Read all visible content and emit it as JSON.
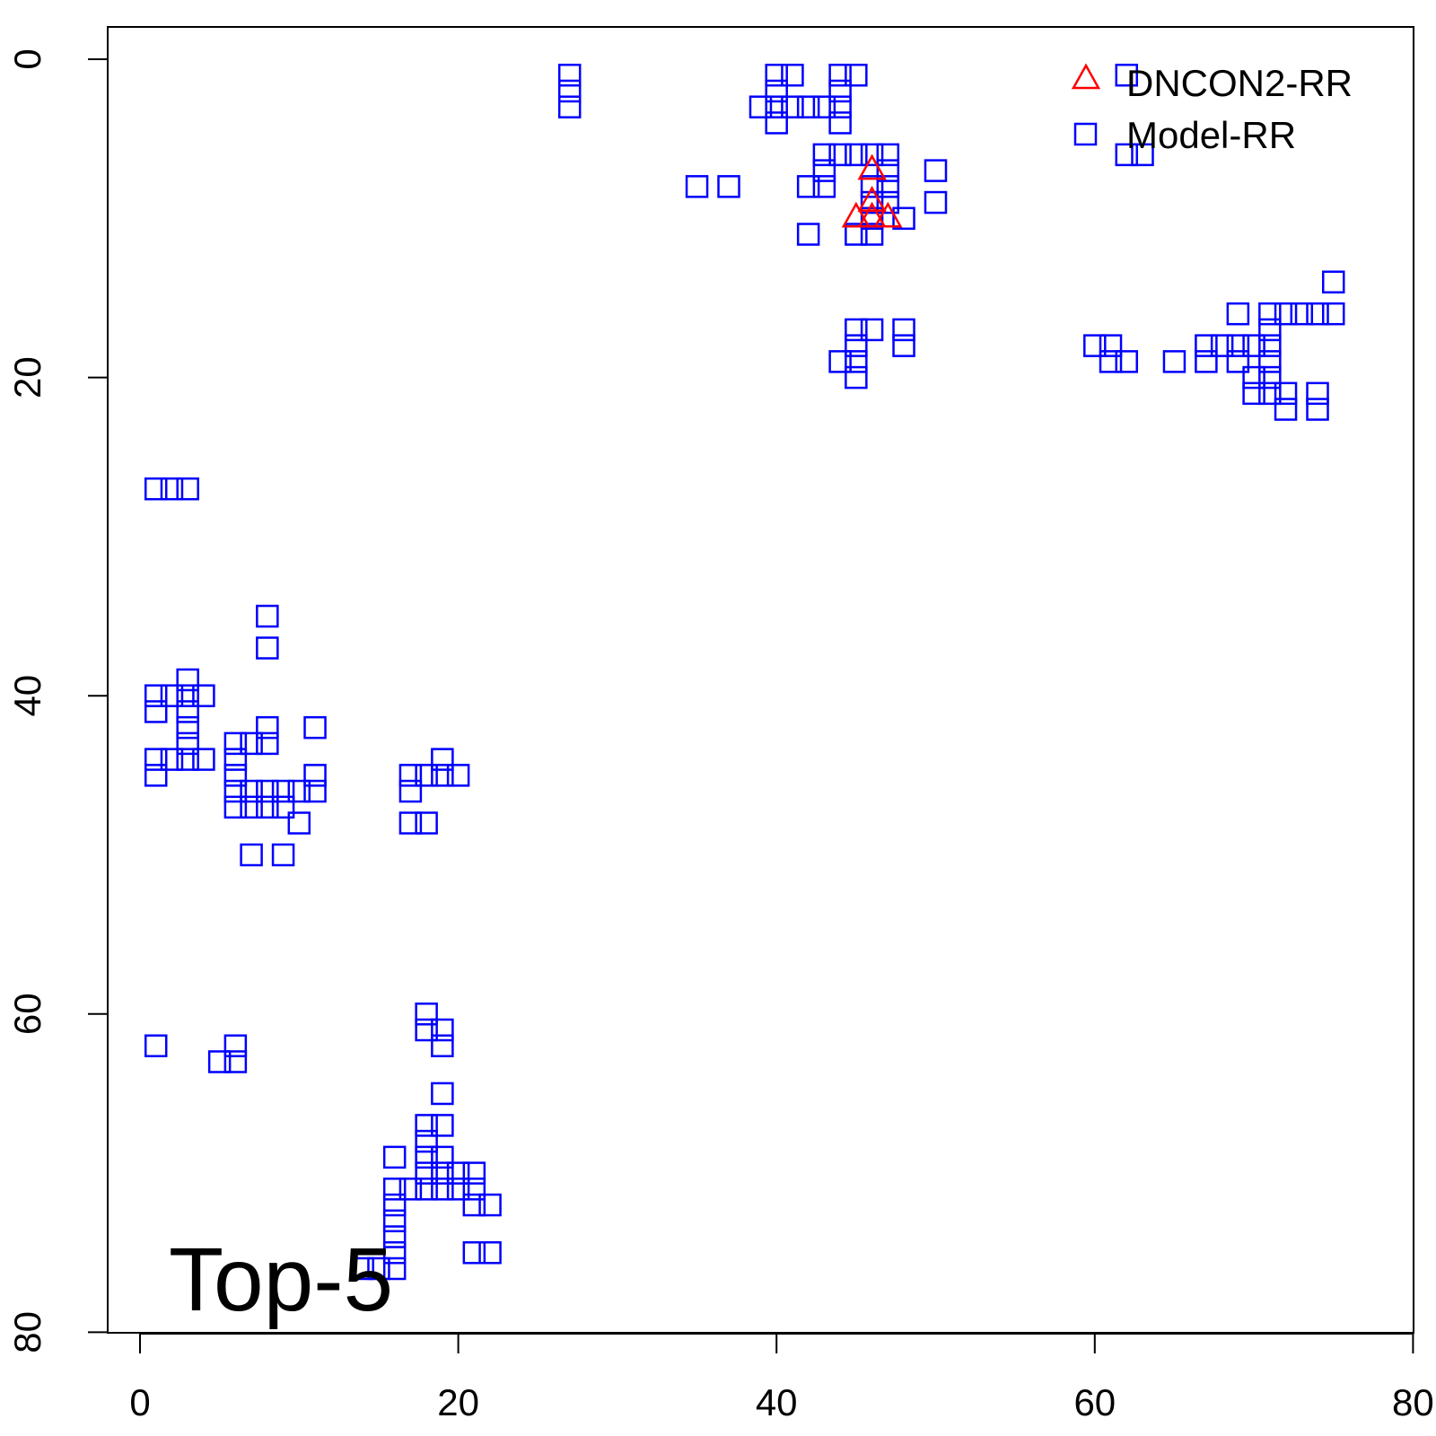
{
  "chart_data": {
    "type": "scatter",
    "title": "",
    "xlabel": "",
    "ylabel": "",
    "xlim": [
      -2,
      80
    ],
    "ylim": [
      80,
      -2
    ],
    "y_reversed": true,
    "x_ticks": [
      "0",
      "20",
      "40",
      "60",
      "80"
    ],
    "y_ticks": [
      "0",
      "20",
      "40",
      "60",
      "80"
    ],
    "annotation": "Top-5",
    "legend": {
      "position": "top-right",
      "items": [
        {
          "label": "DNCON2-RR",
          "marker": "triangle",
          "color": "#ff0000"
        },
        {
          "label": "Model-RR",
          "marker": "square",
          "color": "#0000ff"
        }
      ]
    },
    "series": [
      {
        "name": "DNCON2-RR",
        "marker": "triangle",
        "color": "#ff0000",
        "points": [
          [
            46,
            7
          ],
          [
            46,
            9
          ],
          [
            45,
            10
          ],
          [
            46,
            10
          ],
          [
            47,
            10
          ]
        ]
      },
      {
        "name": "Model-RR",
        "marker": "square",
        "color": "#0000ff",
        "points": [
          [
            27,
            1
          ],
          [
            27,
            2
          ],
          [
            27,
            3
          ],
          [
            40,
            1
          ],
          [
            41,
            1
          ],
          [
            44,
            1
          ],
          [
            45,
            1
          ],
          [
            40,
            2
          ],
          [
            44,
            2
          ],
          [
            39,
            3
          ],
          [
            40,
            3
          ],
          [
            41,
            3
          ],
          [
            42,
            3
          ],
          [
            43,
            3
          ],
          [
            44,
            3
          ],
          [
            40,
            4
          ],
          [
            44,
            4
          ],
          [
            43,
            6
          ],
          [
            44,
            6
          ],
          [
            45,
            6
          ],
          [
            46,
            6
          ],
          [
            47,
            6
          ],
          [
            43,
            7
          ],
          [
            47,
            7
          ],
          [
            50,
            7
          ],
          [
            35,
            8
          ],
          [
            37,
            8
          ],
          [
            42,
            8
          ],
          [
            43,
            8
          ],
          [
            46,
            8
          ],
          [
            47,
            8
          ],
          [
            46,
            9
          ],
          [
            47,
            9
          ],
          [
            50,
            9
          ],
          [
            46,
            10
          ],
          [
            48,
            10
          ],
          [
            42,
            11
          ],
          [
            45,
            11
          ],
          [
            46,
            11
          ],
          [
            45,
            17
          ],
          [
            46,
            17
          ],
          [
            48,
            17
          ],
          [
            45,
            18
          ],
          [
            48,
            18
          ],
          [
            44,
            19
          ],
          [
            45,
            19
          ],
          [
            45,
            20
          ],
          [
            62,
            1
          ],
          [
            62,
            6
          ],
          [
            63,
            6
          ],
          [
            75,
            14
          ],
          [
            69,
            16
          ],
          [
            71,
            16
          ],
          [
            72,
            16
          ],
          [
            73,
            16
          ],
          [
            74,
            16
          ],
          [
            75,
            16
          ],
          [
            71,
            17
          ],
          [
            60,
            18
          ],
          [
            61,
            18
          ],
          [
            67,
            18
          ],
          [
            68,
            18
          ],
          [
            69,
            18
          ],
          [
            70,
            18
          ],
          [
            71,
            18
          ],
          [
            61,
            19
          ],
          [
            62,
            19
          ],
          [
            65,
            19
          ],
          [
            67,
            19
          ],
          [
            69,
            19
          ],
          [
            71,
            19
          ],
          [
            70,
            20
          ],
          [
            71,
            20
          ],
          [
            70,
            21
          ],
          [
            71,
            21
          ],
          [
            72,
            21
          ],
          [
            74,
            21
          ],
          [
            72,
            22
          ],
          [
            74,
            22
          ],
          [
            1,
            27
          ],
          [
            2,
            27
          ],
          [
            3,
            27
          ],
          [
            8,
            35
          ],
          [
            8,
            37
          ],
          [
            3,
            39
          ],
          [
            1,
            40
          ],
          [
            2,
            40
          ],
          [
            3,
            40
          ],
          [
            4,
            40
          ],
          [
            1,
            41
          ],
          [
            3,
            41
          ],
          [
            3,
            42
          ],
          [
            8,
            42
          ],
          [
            11,
            42
          ],
          [
            3,
            43
          ],
          [
            6,
            43
          ],
          [
            7,
            43
          ],
          [
            8,
            43
          ],
          [
            1,
            44
          ],
          [
            2,
            44
          ],
          [
            3,
            44
          ],
          [
            4,
            44
          ],
          [
            6,
            44
          ],
          [
            1,
            45
          ],
          [
            6,
            45
          ],
          [
            11,
            45
          ],
          [
            6,
            46
          ],
          [
            7,
            46
          ],
          [
            8,
            46
          ],
          [
            9,
            46
          ],
          [
            10,
            46
          ],
          [
            11,
            46
          ],
          [
            6,
            47
          ],
          [
            7,
            47
          ],
          [
            8,
            47
          ],
          [
            9,
            47
          ],
          [
            10,
            48
          ],
          [
            7,
            50
          ],
          [
            9,
            50
          ],
          [
            17,
            45
          ],
          [
            18,
            45
          ],
          [
            19,
            44
          ],
          [
            19,
            45
          ],
          [
            20,
            45
          ],
          [
            17,
            46
          ],
          [
            17,
            48
          ],
          [
            18,
            48
          ],
          [
            1,
            62
          ],
          [
            5,
            63
          ],
          [
            6,
            62
          ],
          [
            6,
            63
          ],
          [
            18,
            60
          ],
          [
            18,
            61
          ],
          [
            19,
            61
          ],
          [
            19,
            62
          ],
          [
            19,
            65
          ],
          [
            18,
            67
          ],
          [
            19,
            67
          ],
          [
            18,
            68
          ],
          [
            16,
            69
          ],
          [
            18,
            69
          ],
          [
            19,
            69
          ],
          [
            18,
            70
          ],
          [
            19,
            70
          ],
          [
            20,
            70
          ],
          [
            21,
            70
          ],
          [
            16,
            71
          ],
          [
            17,
            71
          ],
          [
            18,
            71
          ],
          [
            19,
            71
          ],
          [
            20,
            71
          ],
          [
            21,
            71
          ],
          [
            16,
            72
          ],
          [
            21,
            72
          ],
          [
            22,
            72
          ],
          [
            16,
            73
          ],
          [
            16,
            74
          ],
          [
            16,
            75
          ],
          [
            21,
            75
          ],
          [
            22,
            75
          ],
          [
            16,
            76
          ],
          [
            14,
            76
          ],
          [
            15,
            76
          ]
        ]
      }
    ]
  }
}
